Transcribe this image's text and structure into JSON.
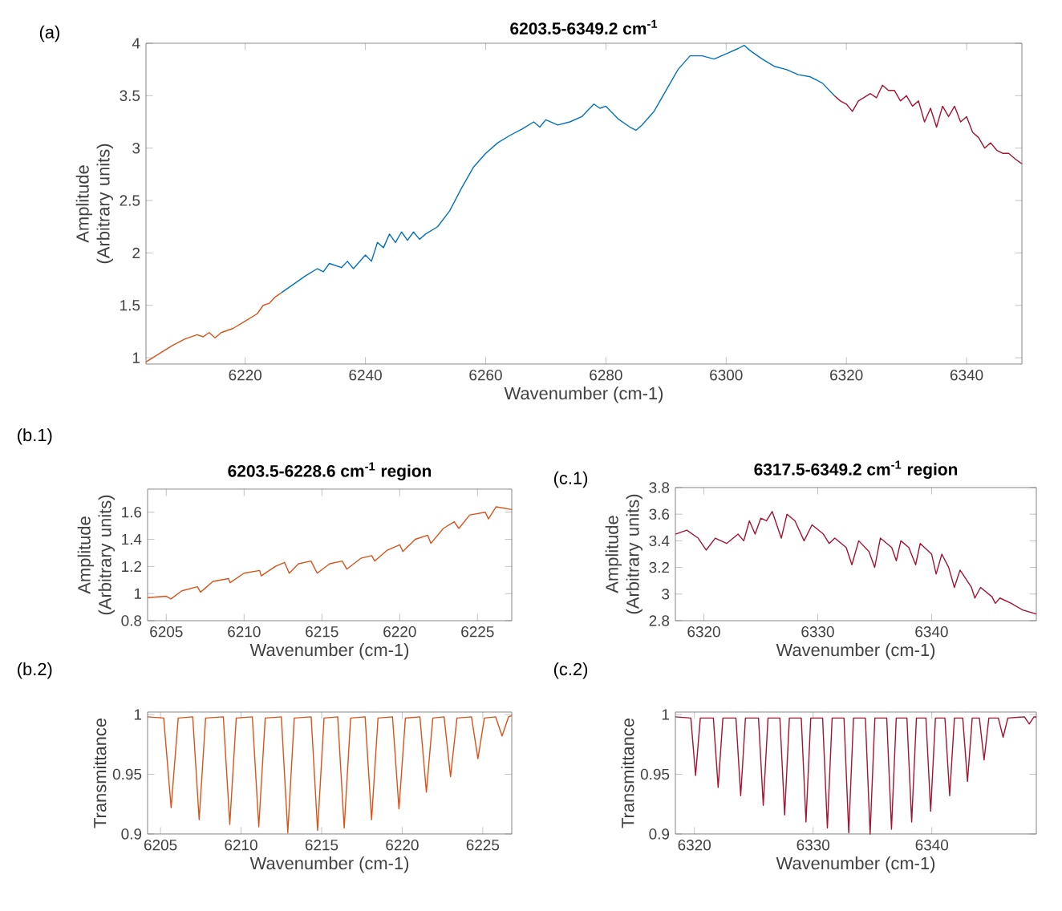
{
  "chart_data": [
    {
      "type": "line",
      "title": "6203.5-6349.2 cm$^{-1}$",
      "xlabel": "Wavenumber (cm-1)",
      "ylabel": "Amplitude (Arbitrary units)",
      "annotations": [
        "(a)"
      ],
      "xlim": [
        6203.5,
        6349.2
      ],
      "ylim": [
        0.94,
        4
      ],
      "xticks": [
        6220,
        6240,
        6260,
        6280,
        6300,
        6320,
        6340
      ],
      "yticks": [
        1,
        1.5,
        2,
        2.5,
        3,
        3.5,
        4
      ],
      "series": [
        {
          "color": "#d95319",
          "x": [
            6203.5,
            6206,
            6208,
            6210,
            6212,
            6213,
            6214,
            6215,
            6216,
            6218,
            6220,
            6222,
            6223,
            6224,
            6225,
            6226
          ],
          "values": [
            0.96,
            1.05,
            1.12,
            1.18,
            1.22,
            1.2,
            1.24,
            1.19,
            1.24,
            1.28,
            1.35,
            1.42,
            1.5,
            1.52,
            1.58,
            1.62
          ]
        },
        {
          "color": "#0072bd",
          "x": [
            6226,
            6228,
            6230,
            6232,
            6233,
            6234,
            6236,
            6237,
            6238,
            6240,
            6241,
            6242,
            6243,
            6244,
            6245,
            6246,
            6247,
            6248,
            6249,
            6250,
            6252,
            6254,
            6256,
            6258,
            6260,
            6262,
            6264,
            6266,
            6268,
            6269,
            6270,
            6272,
            6274,
            6276,
            6278,
            6279,
            6280,
            6282,
            6284,
            6285,
            6286,
            6288,
            6290,
            6292,
            6294,
            6296,
            6298,
            6300,
            6302,
            6303,
            6304,
            6306,
            6308,
            6310,
            6312,
            6314,
            6316,
            6318
          ],
          "values": [
            1.62,
            1.7,
            1.78,
            1.85,
            1.82,
            1.9,
            1.86,
            1.92,
            1.85,
            1.98,
            1.92,
            2.1,
            2.05,
            2.18,
            2.1,
            2.2,
            2.12,
            2.2,
            2.13,
            2.18,
            2.25,
            2.4,
            2.62,
            2.82,
            2.95,
            3.05,
            3.12,
            3.18,
            3.25,
            3.2,
            3.27,
            3.22,
            3.25,
            3.3,
            3.42,
            3.38,
            3.4,
            3.28,
            3.2,
            3.17,
            3.22,
            3.35,
            3.55,
            3.75,
            3.88,
            3.88,
            3.85,
            3.9,
            3.95,
            3.98,
            3.93,
            3.85,
            3.78,
            3.75,
            3.7,
            3.68,
            3.62,
            3.5
          ]
        },
        {
          "color": "#a2142f",
          "x": [
            6318,
            6319,
            6320,
            6321,
            6322,
            6324,
            6325,
            6326,
            6327,
            6328,
            6329,
            6330,
            6331,
            6332,
            6333,
            6334,
            6335,
            6336,
            6337,
            6338,
            6339,
            6340,
            6341,
            6342,
            6343,
            6344,
            6345,
            6346,
            6347,
            6348,
            6349.2
          ],
          "values": [
            3.5,
            3.45,
            3.42,
            3.35,
            3.45,
            3.52,
            3.48,
            3.6,
            3.55,
            3.55,
            3.45,
            3.5,
            3.4,
            3.45,
            3.25,
            3.38,
            3.2,
            3.4,
            3.3,
            3.4,
            3.25,
            3.3,
            3.15,
            3.1,
            3.0,
            3.05,
            2.98,
            2.95,
            2.95,
            2.9,
            2.85
          ]
        }
      ]
    },
    {
      "type": "line",
      "title": "6203.5-6228.6 cm$^{-1}$ region",
      "xlabel": "Wavenumber (cm-1)",
      "ylabel": "Amplitude (Arbitrary units)",
      "annotations": [
        "(b.1)"
      ],
      "xlim": [
        6203.8,
        6227.2
      ],
      "ylim": [
        0.8,
        1.77
      ],
      "xticks": [
        6205,
        6210,
        6215,
        6220,
        6225
      ],
      "yticks": [
        0.8,
        1,
        1.2,
        1.4,
        1.6
      ],
      "series": [
        {
          "color": "#d95319",
          "x": [
            6203.8,
            6205,
            6205.3,
            6206,
            6207,
            6207.2,
            6208,
            6209,
            6209.1,
            6210,
            6211,
            6211.1,
            6212,
            6212.6,
            6212.9,
            6213.5,
            6214.3,
            6214.7,
            6215.5,
            6216.3,
            6216.6,
            6217.5,
            6218.2,
            6218.4,
            6219.2,
            6220,
            6220.2,
            6221,
            6221.8,
            6222,
            6222.8,
            6223.5,
            6223.8,
            6224.5,
            6225.5,
            6225.7,
            6226.2,
            6227.2
          ],
          "values": [
            0.97,
            0.98,
            0.96,
            1.02,
            1.05,
            1.01,
            1.09,
            1.11,
            1.08,
            1.15,
            1.17,
            1.13,
            1.2,
            1.23,
            1.15,
            1.22,
            1.24,
            1.15,
            1.22,
            1.24,
            1.18,
            1.26,
            1.28,
            1.24,
            1.32,
            1.36,
            1.31,
            1.4,
            1.43,
            1.37,
            1.48,
            1.53,
            1.48,
            1.58,
            1.6,
            1.55,
            1.64,
            1.62
          ]
        }
      ]
    },
    {
      "type": "line",
      "title": "6317.5-6349.2 cm$^{-1}$ region",
      "xlabel": "Wavenumber (cm-1)",
      "ylabel": "Amplitude (Arbitrary units)",
      "annotations": [
        "(c.1)"
      ],
      "xlim": [
        6317.5,
        6349.2
      ],
      "ylim": [
        2.8,
        3.8
      ],
      "xticks": [
        6320,
        6330,
        6340
      ],
      "yticks": [
        2.8,
        3,
        3.2,
        3.4,
        3.6,
        3.8
      ],
      "series": [
        {
          "color": "#a2142f",
          "x": [
            6317.5,
            6318.5,
            6319.5,
            6320.2,
            6321,
            6322,
            6323,
            6323.5,
            6324,
            6324.5,
            6325,
            6325.5,
            6326,
            6326.8,
            6327.3,
            6328,
            6328.8,
            6329.5,
            6330.5,
            6331,
            6331.5,
            6332.5,
            6333,
            6333.6,
            6334.5,
            6335,
            6335.5,
            6336.5,
            6336.9,
            6337.3,
            6338,
            6338.6,
            6339,
            6340,
            6340.4,
            6340.9,
            6341.5,
            6342,
            6342.5,
            6343.5,
            6343.8,
            6344.3,
            6345.3,
            6345.6,
            6346,
            6347,
            6348,
            6349.2
          ],
          "values": [
            3.45,
            3.48,
            3.42,
            3.33,
            3.42,
            3.38,
            3.45,
            3.4,
            3.55,
            3.45,
            3.57,
            3.55,
            3.62,
            3.42,
            3.6,
            3.55,
            3.4,
            3.52,
            3.45,
            3.38,
            3.42,
            3.35,
            3.22,
            3.4,
            3.32,
            3.2,
            3.42,
            3.35,
            3.25,
            3.4,
            3.35,
            3.22,
            3.38,
            3.3,
            3.15,
            3.3,
            3.2,
            3.05,
            3.18,
            3.05,
            2.97,
            3.05,
            2.98,
            2.93,
            2.97,
            2.93,
            2.88,
            2.85
          ]
        }
      ]
    },
    {
      "type": "line",
      "xlabel": "Wavenumber (cm-1)",
      "ylabel": "Transmittance",
      "annotations": [
        "(b.2)"
      ],
      "xlim": [
        6204.2,
        6226.8
      ],
      "ylim": [
        0.9,
        1.002
      ],
      "xticks": [
        6205,
        6210,
        6215,
        6220,
        6225
      ],
      "yticks": [
        0.9,
        0.95,
        1
      ],
      "series": [
        {
          "color": "#d95319",
          "x": [
            6204.2,
            6205.2,
            6205.66,
            6206.1,
            6207.0,
            6207.4,
            6207.8,
            6208.9,
            6209.3,
            6209.7,
            6210.7,
            6211.1,
            6211.5,
            6212.5,
            6212.9,
            6213.3,
            6214.35,
            6214.75,
            6215.15,
            6216.0,
            6216.4,
            6216.8,
            6217.7,
            6218.1,
            6218.5,
            6219.4,
            6219.8,
            6220.2,
            6221.1,
            6221.5,
            6221.9,
            6222.6,
            6223.0,
            6223.4,
            6224.3,
            6224.7,
            6225.1,
            6225.8,
            6226.2,
            6226.6,
            6226.8
          ],
          "values": [
            0.998,
            0.997,
            0.922,
            0.997,
            0.998,
            0.912,
            0.997,
            0.998,
            0.908,
            0.997,
            0.998,
            0.906,
            0.997,
            0.998,
            0.901,
            0.997,
            0.998,
            0.903,
            0.997,
            0.998,
            0.905,
            0.997,
            0.998,
            0.912,
            0.997,
            0.998,
            0.921,
            0.997,
            0.998,
            0.935,
            0.997,
            0.998,
            0.948,
            0.997,
            0.998,
            0.963,
            0.997,
            0.998,
            0.982,
            0.998,
            0.999
          ]
        }
      ]
    },
    {
      "type": "line",
      "xlabel": "Wavenumber (cm-1)",
      "ylabel": "Transmittance",
      "annotations": [
        "(c.2)"
      ],
      "xlim": [
        6318.4,
        6348.8
      ],
      "ylim": [
        0.9,
        1.002
      ],
      "xticks": [
        6320,
        6330,
        6340
      ],
      "yticks": [
        0.9,
        0.95,
        1
      ],
      "series": [
        {
          "color": "#a2142f",
          "x": [
            6318.4,
            6319.7,
            6320.1,
            6320.5,
            6321.6,
            6322.0,
            6322.4,
            6323.5,
            6323.9,
            6324.3,
            6325.4,
            6325.8,
            6326.2,
            6327.2,
            6327.6,
            6328.0,
            6329.0,
            6329.4,
            6329.8,
            6330.8,
            6331.2,
            6331.6,
            6332.6,
            6333.0,
            6333.4,
            6334.4,
            6334.8,
            6335.2,
            6336.2,
            6336.6,
            6337.0,
            6337.9,
            6338.3,
            6338.7,
            6339.5,
            6339.9,
            6340.3,
            6341.1,
            6341.5,
            6341.9,
            6342.6,
            6343.0,
            6343.4,
            6344.0,
            6344.4,
            6344.8,
            6345.6,
            6346.0,
            6346.4,
            6347.8,
            6348.2,
            6348.6,
            6348.8
          ],
          "values": [
            0.998,
            0.997,
            0.949,
            0.997,
            0.997,
            0.939,
            0.997,
            0.997,
            0.932,
            0.997,
            0.997,
            0.924,
            0.997,
            0.997,
            0.916,
            0.997,
            0.997,
            0.91,
            0.997,
            0.997,
            0.905,
            0.997,
            0.997,
            0.901,
            0.997,
            0.997,
            0.9,
            0.997,
            0.997,
            0.904,
            0.997,
            0.997,
            0.91,
            0.997,
            0.997,
            0.919,
            0.997,
            0.997,
            0.932,
            0.997,
            0.997,
            0.944,
            0.997,
            0.997,
            0.962,
            0.997,
            0.997,
            0.981,
            0.997,
            0.998,
            0.992,
            0.998,
            0.998
          ]
        }
      ]
    }
  ]
}
